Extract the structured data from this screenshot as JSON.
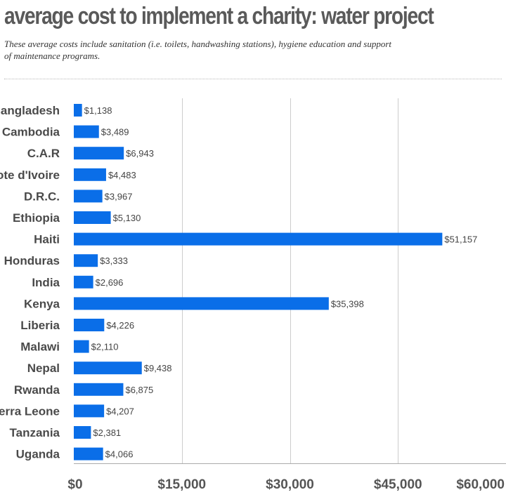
{
  "title": "average cost to implement a charity: water project",
  "subtitle": "These average costs include sanitation (i.e. toilets, handwashing stations), hygiene education and support of maintenance programs.",
  "colors": {
    "bar": "#0a6ee8",
    "grid": "#cccccc",
    "text": "#4a4a4a"
  },
  "chart_data": {
    "type": "bar",
    "orientation": "horizontal",
    "categories": [
      "Bangladesh",
      "Cambodia",
      "C.A.R",
      "Cote d'Ivoire",
      "D.R.C.",
      "Ethiopia",
      "Haiti",
      "Honduras",
      "India",
      "Kenya",
      "Liberia",
      "Malawi",
      "Nepal",
      "Rwanda",
      "Sierra Leone",
      "Tanzania",
      "Uganda"
    ],
    "values": [
      1138,
      3489,
      6943,
      4483,
      3967,
      5130,
      51157,
      3333,
      2696,
      35398,
      4226,
      2110,
      9438,
      6875,
      4207,
      2381,
      4066
    ],
    "value_labels": [
      "$1,138",
      "$3,489",
      "$6,943",
      "$4,483",
      "$3,967",
      "$5,130",
      "$51,157",
      "$3,333",
      "$2,696",
      "$35,398",
      "$4,226",
      "$2,110",
      "$9,438",
      "$6,875",
      "$4,207",
      "$2,381",
      "$4,066"
    ],
    "xlim": [
      0,
      60000
    ],
    "xticks": [
      0,
      15000,
      30000,
      45000,
      60000
    ],
    "xtick_labels": [
      "$0",
      "$15,000",
      "$30,000",
      "$45,000",
      "$60,000"
    ],
    "grid": true,
    "title": "average cost to implement a charity: water project"
  }
}
